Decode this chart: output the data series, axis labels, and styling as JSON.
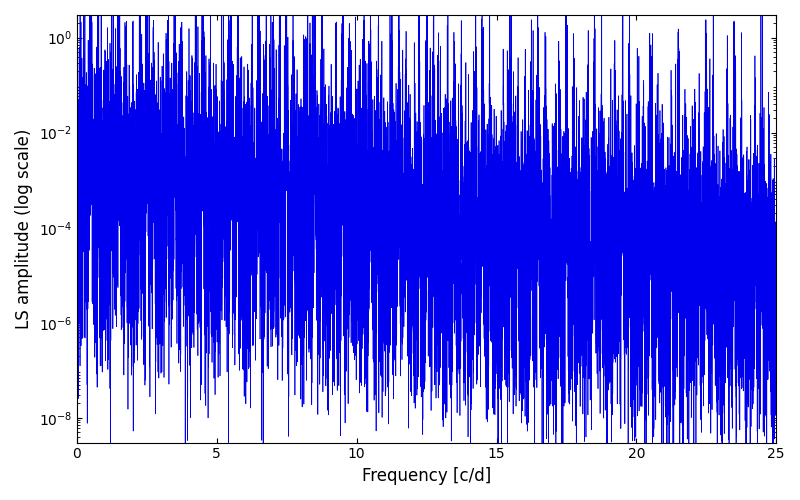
{
  "xlabel": "Frequency [c/d]",
  "ylabel": "LS amplitude (log scale)",
  "line_color": "#0000ee",
  "line_width": 0.5,
  "xlim": [
    0,
    25
  ],
  "ylim_log": [
    3e-09,
    3.0
  ],
  "yticks": [
    1e-08,
    1e-06,
    0.0001,
    0.01,
    1.0
  ],
  "freq_max": 25,
  "n_points": 15000,
  "seed": 12345,
  "background_color": "#ffffff",
  "figsize": [
    8.0,
    5.0
  ],
  "dpi": 100
}
